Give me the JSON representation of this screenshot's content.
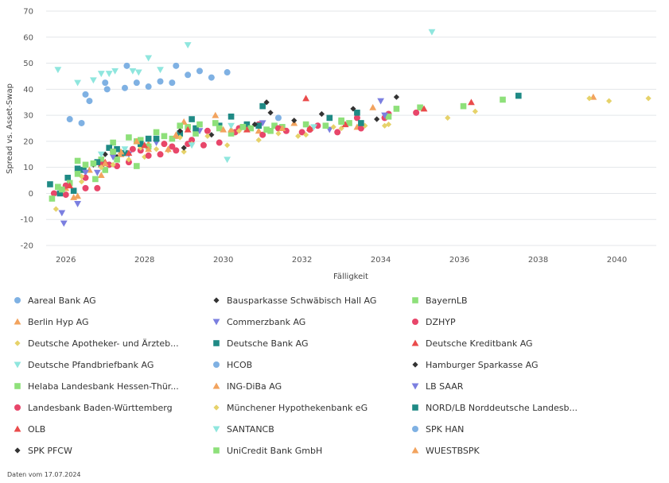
{
  "chart_data": {
    "type": "scatter",
    "xlabel": "Fälligkeit",
    "ylabel": "Spread vs. Asset-Swap",
    "xlim": [
      2025.5,
      2041.0
    ],
    "ylim": [
      -20,
      70
    ],
    "x_ticks": [
      2026,
      2028,
      2030,
      2032,
      2034,
      2036,
      2038,
      2040
    ],
    "y_ticks": [
      -20,
      -10,
      0,
      10,
      20,
      30,
      40,
      50,
      60,
      70
    ],
    "grid": "horizontal",
    "legend_position": "bottom",
    "footnote": "Daten vom 17.07.2024",
    "series": [
      {
        "name": "Aareal Bank AG",
        "marker": "circle",
        "color": "#7fb1e3",
        "points": [
          [
            2026.1,
            28.5
          ],
          [
            2026.4,
            27
          ],
          [
            2026.5,
            38
          ],
          [
            2026.6,
            35.5
          ],
          [
            2027.0,
            42.5
          ],
          [
            2027.05,
            40
          ],
          [
            2027.5,
            40.5
          ],
          [
            2027.8,
            42.5
          ],
          [
            2028.1,
            41
          ],
          [
            2028.4,
            43
          ],
          [
            2028.7,
            42.5
          ],
          [
            2029.1,
            45.5
          ],
          [
            2029.4,
            47
          ],
          [
            2029.7,
            44.5
          ],
          [
            2030.1,
            46.5
          ]
        ]
      },
      {
        "name": "Bausparkasse Schwäbisch Hall AG",
        "marker": "diamond",
        "color": "#333333",
        "points": [
          [
            2027.0,
            15
          ],
          [
            2027.3,
            14
          ],
          [
            2029.7,
            22.5
          ],
          [
            2031.2,
            31
          ],
          [
            2032.5,
            30.5
          ]
        ]
      },
      {
        "name": "BayernLB",
        "marker": "square",
        "color": "#8ee07a",
        "points": [
          [
            2025.8,
            2.5
          ],
          [
            2026.3,
            12.5
          ],
          [
            2026.9,
            13
          ],
          [
            2027.2,
            19.5
          ],
          [
            2027.9,
            20.5
          ],
          [
            2028.5,
            22
          ],
          [
            2029.3,
            23
          ],
          [
            2030.5,
            25.5
          ],
          [
            2031.5,
            25.5
          ],
          [
            2032.1,
            26.5
          ],
          [
            2033.2,
            27
          ],
          [
            2034.4,
            32.5
          ],
          [
            2035.0,
            33
          ],
          [
            2036.1,
            33.5
          ],
          [
            2037.1,
            36
          ]
        ]
      },
      {
        "name": "Berlin Hyp AG",
        "marker": "triangle-up",
        "color": "#f2a35e",
        "points": [
          [
            2026.3,
            -1
          ],
          [
            2026.9,
            7
          ],
          [
            2027.4,
            15
          ],
          [
            2028.1,
            19
          ],
          [
            2028.8,
            22
          ],
          [
            2029.8,
            30
          ],
          [
            2030.9,
            24
          ],
          [
            2033.8,
            33
          ],
          [
            2039.4,
            37
          ]
        ]
      },
      {
        "name": "Commerzbank AG",
        "marker": "triangle-down",
        "color": "#7b7fe0",
        "points": [
          [
            2025.9,
            -7.5
          ],
          [
            2025.95,
            -11.5
          ],
          [
            2026.3,
            -4
          ],
          [
            2026.8,
            8
          ],
          [
            2027.6,
            15
          ],
          [
            2028.3,
            19.5
          ],
          [
            2031.0,
            27
          ],
          [
            2032.7,
            24.5
          ],
          [
            2034.0,
            35.5
          ]
        ]
      },
      {
        "name": "DZHYP",
        "marker": "circle",
        "color": "#e8466a",
        "points": [
          [
            2025.7,
            0
          ],
          [
            2026.0,
            -0.5
          ],
          [
            2026.5,
            2
          ],
          [
            2026.8,
            2
          ],
          [
            2027.1,
            11
          ],
          [
            2027.3,
            10.5
          ],
          [
            2027.6,
            12
          ],
          [
            2027.9,
            16.5
          ],
          [
            2028.4,
            15
          ],
          [
            2028.7,
            18
          ],
          [
            2029.1,
            19
          ],
          [
            2029.5,
            18.5
          ],
          [
            2029.9,
            19.5
          ],
          [
            2030.3,
            23.5
          ],
          [
            2031.0,
            22.5
          ],
          [
            2031.6,
            24
          ],
          [
            2032.2,
            24.5
          ],
          [
            2032.9,
            23.5
          ],
          [
            2033.4,
            29
          ],
          [
            2034.1,
            29
          ],
          [
            2034.2,
            30.5
          ],
          [
            2034.9,
            31
          ]
        ]
      },
      {
        "name": "Deutsche Apotheker- und Ärzteb...",
        "marker": "diamond",
        "color": "#e6d26a",
        "points": [
          [
            2025.75,
            -6
          ],
          [
            2026.4,
            4.5
          ],
          [
            2027.2,
            11
          ],
          [
            2028.0,
            14
          ],
          [
            2028.6,
            16.5
          ],
          [
            2029.0,
            16
          ],
          [
            2030.1,
            18.5
          ],
          [
            2030.9,
            20.5
          ],
          [
            2031.9,
            22
          ],
          [
            2033.0,
            25
          ],
          [
            2034.1,
            26
          ],
          [
            2035.7,
            29
          ],
          [
            2036.4,
            31.5
          ],
          [
            2039.3,
            36.5
          ],
          [
            2039.8,
            35.5
          ],
          [
            2040.8,
            36.5
          ]
        ]
      },
      {
        "name": "Deutsche Bank AG",
        "marker": "square",
        "color": "#1f8a85",
        "points": [
          [
            2025.6,
            3.5
          ],
          [
            2025.85,
            0
          ],
          [
            2026.05,
            6
          ],
          [
            2026.2,
            1
          ],
          [
            2026.45,
            9
          ],
          [
            2026.9,
            11
          ],
          [
            2027.1,
            17.5
          ],
          [
            2027.5,
            15.5
          ],
          [
            2028.1,
            21
          ],
          [
            2028.9,
            23
          ],
          [
            2029.2,
            28.5
          ],
          [
            2029.9,
            26
          ],
          [
            2030.2,
            29.5
          ],
          [
            2030.6,
            26.5
          ],
          [
            2031.0,
            33.5
          ],
          [
            2032.7,
            29
          ],
          [
            2033.4,
            31
          ],
          [
            2037.5,
            37.5
          ]
        ]
      },
      {
        "name": "Deutsche Kreditbank AG",
        "marker": "triangle-up",
        "color": "#ea4b4b",
        "points": [
          [
            2027.6,
            15.5
          ],
          [
            2032.1,
            36.5
          ],
          [
            2033.1,
            26.5
          ],
          [
            2035.1,
            32.5
          ],
          [
            2036.3,
            35
          ]
        ]
      },
      {
        "name": "Deutsche Pfandbriefbank AG",
        "marker": "triangle-down",
        "color": "#8fe6de",
        "points": [
          [
            2025.8,
            47.5
          ],
          [
            2026.3,
            42.5
          ],
          [
            2026.7,
            43.5
          ],
          [
            2026.9,
            46
          ],
          [
            2027.1,
            46
          ],
          [
            2027.25,
            47
          ],
          [
            2027.7,
            47
          ],
          [
            2027.85,
            46.5
          ],
          [
            2028.1,
            52
          ],
          [
            2028.4,
            47.5
          ],
          [
            2029.1,
            57
          ],
          [
            2030.1,
            13
          ],
          [
            2035.3,
            62
          ]
        ]
      },
      {
        "name": "HCOB",
        "marker": "circle",
        "color": "#7fb1e3",
        "points": [
          [
            2027.55,
            49
          ],
          [
            2028.8,
            49
          ]
        ]
      },
      {
        "name": "Hamburger Sparkasse AG",
        "marker": "diamond",
        "color": "#333333",
        "points": [
          [
            2026.7,
            11
          ],
          [
            2028.9,
            24
          ],
          [
            2031.1,
            35
          ],
          [
            2033.3,
            32.5
          ],
          [
            2034.4,
            37
          ]
        ]
      },
      {
        "name": "Helaba Landesbank Hessen-Thür...",
        "marker": "square",
        "color": "#8ee07a",
        "points": [
          [
            2025.65,
            -2
          ],
          [
            2026.1,
            4
          ],
          [
            2026.5,
            11
          ],
          [
            2026.75,
            5.5
          ],
          [
            2027.0,
            9
          ],
          [
            2027.3,
            13
          ],
          [
            2027.6,
            21.5
          ],
          [
            2027.8,
            10.5
          ],
          [
            2028.1,
            18
          ],
          [
            2028.7,
            21
          ],
          [
            2029.1,
            25.5
          ],
          [
            2029.9,
            25
          ],
          [
            2030.2,
            23
          ],
          [
            2030.7,
            25
          ],
          [
            2031.1,
            24.5
          ],
          [
            2031.3,
            26
          ],
          [
            2032.6,
            26
          ],
          [
            2033.0,
            27.5
          ],
          [
            2034.2,
            29.5
          ]
        ]
      },
      {
        "name": "ING-DiBa AG",
        "marker": "triangle-up",
        "color": "#f2a35e",
        "points": [
          [
            2026.0,
            2
          ],
          [
            2026.6,
            9
          ],
          [
            2027.4,
            16
          ],
          [
            2028.1,
            17
          ],
          [
            2028.6,
            17
          ],
          [
            2029.0,
            27.5
          ],
          [
            2030.2,
            24.5
          ],
          [
            2031.8,
            27
          ],
          [
            2033.4,
            25.5
          ]
        ]
      },
      {
        "name": "LB SAAR",
        "marker": "triangle-down",
        "color": "#7b7fe0",
        "points": [
          [
            2026.5,
            8
          ],
          [
            2027.2,
            14
          ],
          [
            2029.4,
            24
          ],
          [
            2034.1,
            30
          ]
        ]
      },
      {
        "name": "Landesbank Baden-Württemberg",
        "marker": "circle",
        "color": "#e8466a",
        "points": [
          [
            2026.0,
            3
          ],
          [
            2026.5,
            6
          ],
          [
            2026.9,
            11
          ],
          [
            2027.2,
            16
          ],
          [
            2027.7,
            17
          ],
          [
            2028.1,
            14.5
          ],
          [
            2028.5,
            19
          ],
          [
            2028.8,
            16.5
          ],
          [
            2029.2,
            20.5
          ],
          [
            2029.6,
            24
          ],
          [
            2030.4,
            25
          ],
          [
            2030.9,
            26.5
          ],
          [
            2031.4,
            25
          ],
          [
            2032.0,
            23.5
          ],
          [
            2032.4,
            26
          ],
          [
            2033.5,
            25
          ]
        ]
      },
      {
        "name": "Münchener Hypothekenbank eG",
        "marker": "diamond",
        "color": "#e6d26a",
        "points": [
          [
            2026.4,
            6.5
          ],
          [
            2026.9,
            10
          ],
          [
            2027.6,
            13
          ],
          [
            2027.9,
            17.5
          ],
          [
            2028.3,
            17
          ],
          [
            2028.9,
            21.5
          ],
          [
            2029.2,
            19
          ],
          [
            2029.6,
            22
          ],
          [
            2030.4,
            24
          ],
          [
            2031.4,
            23
          ],
          [
            2032.1,
            22.5
          ],
          [
            2032.8,
            25.5
          ],
          [
            2033.6,
            26
          ],
          [
            2034.2,
            26.5
          ]
        ]
      },
      {
        "name": "NORD/LB Norddeutsche Landesb...",
        "marker": "square",
        "color": "#1f8a85",
        "points": [
          [
            2026.3,
            9.5
          ],
          [
            2026.8,
            12
          ],
          [
            2027.3,
            17
          ],
          [
            2027.9,
            19
          ],
          [
            2028.3,
            21
          ],
          [
            2029.3,
            25
          ],
          [
            2030.9,
            26
          ],
          [
            2033.5,
            27
          ]
        ]
      },
      {
        "name": "OLB",
        "marker": "triangle-up",
        "color": "#ea4b4b",
        "points": [
          [
            2026.1,
            3
          ],
          [
            2027.0,
            12
          ],
          [
            2028.0,
            18.5
          ],
          [
            2029.1,
            24.5
          ],
          [
            2030.6,
            24.5
          ],
          [
            2032.2,
            25
          ]
        ]
      },
      {
        "name": "SANTANCB",
        "marker": "triangle-down",
        "color": "#8fe6de",
        "points": [
          [
            2026.9,
            15
          ],
          [
            2027.5,
            17
          ],
          [
            2029.2,
            18.5
          ],
          [
            2030.2,
            26
          ],
          [
            2032.3,
            25.5
          ]
        ]
      },
      {
        "name": "SPK HAN",
        "marker": "circle",
        "color": "#7fb1e3",
        "points": [
          [
            2031.4,
            29
          ]
        ]
      },
      {
        "name": "SPK PFCW",
        "marker": "diamond",
        "color": "#333333",
        "points": [
          [
            2029.0,
            17.5
          ],
          [
            2030.8,
            26.5
          ],
          [
            2031.8,
            28
          ],
          [
            2033.9,
            28.5
          ]
        ]
      },
      {
        "name": "UniCredit Bank GmbH",
        "marker": "square",
        "color": "#8ee07a",
        "points": [
          [
            2025.9,
            1.5
          ],
          [
            2026.3,
            7.5
          ],
          [
            2026.7,
            11.5
          ],
          [
            2027.2,
            16
          ],
          [
            2027.8,
            20
          ],
          [
            2028.3,
            23.5
          ],
          [
            2028.9,
            26
          ],
          [
            2029.4,
            26.5
          ],
          [
            2029.8,
            27
          ],
          [
            2030.5,
            25.5
          ],
          [
            2031.2,
            24
          ],
          [
            2033.0,
            28
          ]
        ]
      },
      {
        "name": "WUESTBSPK",
        "marker": "triangle-up",
        "color": "#f2a35e",
        "points": [
          [
            2026.2,
            -1.5
          ],
          [
            2027.0,
            11.5
          ],
          [
            2027.8,
            20
          ],
          [
            2028.8,
            22.5
          ],
          [
            2030.0,
            24.5
          ],
          [
            2031.5,
            25
          ]
        ]
      }
    ]
  }
}
